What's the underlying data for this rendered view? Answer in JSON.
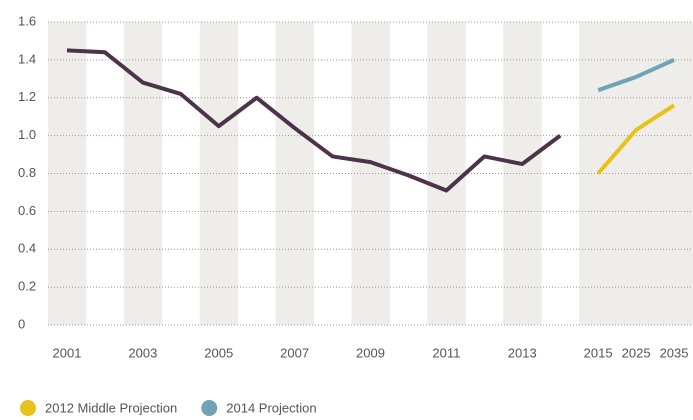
{
  "chart_data": {
    "type": "line",
    "categories": [
      "2001",
      null,
      "2003",
      null,
      "2005",
      null,
      "2007",
      null,
      "2009",
      null,
      "2011",
      null,
      "2013",
      null,
      "2015",
      "2025",
      "2035"
    ],
    "series": [
      {
        "color": "#4b3349",
        "values": [
          1.45,
          1.44,
          1.28,
          1.22,
          1.05,
          1.2,
          1.04,
          0.89,
          0.86,
          0.79,
          0.71,
          0.89,
          0.85,
          1.0,
          null,
          null,
          null
        ]
      },
      {
        "name": "2012 Middle Projection",
        "color": "#e8c21a",
        "values": [
          null,
          null,
          null,
          null,
          null,
          null,
          null,
          null,
          null,
          null,
          null,
          null,
          null,
          null,
          0.8,
          1.03,
          1.16
        ]
      },
      {
        "name": "2014 Projection",
        "color": "#6fa3b5",
        "values": [
          null,
          null,
          null,
          null,
          null,
          null,
          null,
          null,
          null,
          null,
          null,
          null,
          null,
          null,
          1.24,
          1.31,
          1.4
        ]
      }
    ],
    "ylim": [
      0,
      1.6
    ],
    "yticks": [
      0,
      0.2,
      0.4,
      0.6,
      0.8,
      {
        "value": 1,
        "label": "1.0"
      },
      1.2,
      1.4,
      1.6
    ],
    "grid": true,
    "legend": "bottom"
  }
}
